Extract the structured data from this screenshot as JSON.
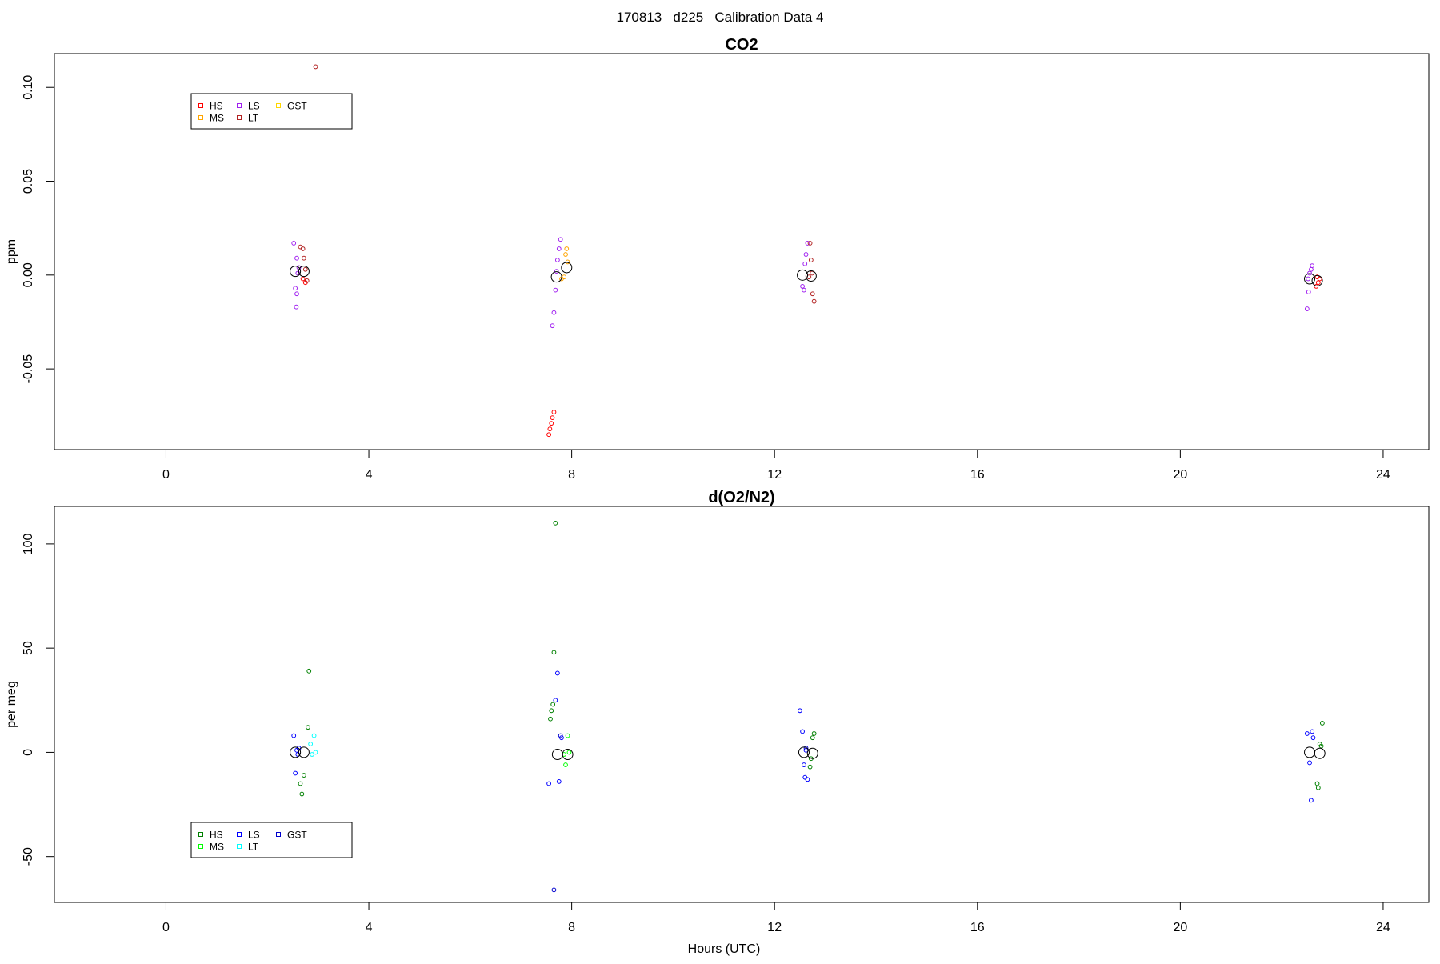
{
  "suptitle": "170813   d225   Calibration Data 4",
  "xlabel": "Hours (UTC)",
  "chart_data": [
    {
      "type": "scatter",
      "title": "CO2",
      "ylabel": "ppm",
      "xlabel": "",
      "xlim": [
        -2.2,
        24.9
      ],
      "ylim": [
        -0.093,
        0.118
      ],
      "xticks": [
        0,
        4,
        8,
        12,
        16,
        20,
        24
      ],
      "yticks": [
        -0.05,
        0.0,
        0.05,
        0.1
      ],
      "ytick_labels": [
        "-0.05",
        "0.00",
        "0.05",
        "0.10"
      ],
      "legend_position": "top-left",
      "legend": [
        {
          "label": "HS",
          "color": "#ff0000"
        },
        {
          "label": "MS",
          "color": "#ffa500"
        },
        {
          "label": "LS",
          "color": "#a020f0"
        },
        {
          "label": "LT",
          "color": "#b22222"
        },
        {
          "label": "GST",
          "color": "#ffd700"
        }
      ],
      "series": [
        {
          "name": "HS",
          "color": "#ff0000",
          "points": [
            [
              2.75,
              -0.004
            ],
            [
              2.7,
              -0.002
            ],
            [
              7.55,
              -0.085
            ],
            [
              7.57,
              -0.082
            ],
            [
              7.6,
              -0.079
            ],
            [
              7.62,
              -0.076
            ],
            [
              7.65,
              -0.073
            ],
            [
              22.7,
              -0.001
            ],
            [
              22.72,
              -0.004
            ],
            [
              22.75,
              -0.002
            ],
            [
              22.68,
              -0.006
            ]
          ]
        },
        {
          "name": "MS",
          "color": "#ffa500",
          "points": [
            [
              7.85,
              -0.001
            ],
            [
              7.88,
              0.011
            ],
            [
              7.9,
              0.014
            ],
            [
              7.92,
              0.007
            ],
            [
              7.8,
              -0.002
            ]
          ]
        },
        {
          "name": "LS",
          "color": "#a020f0",
          "points": [
            [
              2.52,
              0.017
            ],
            [
              2.58,
              0.009
            ],
            [
              2.6,
              0.001
            ],
            [
              2.55,
              -0.007
            ],
            [
              2.58,
              -0.01
            ],
            [
              2.57,
              -0.017
            ],
            [
              2.62,
              0.004
            ],
            [
              7.62,
              -0.027
            ],
            [
              7.65,
              -0.02
            ],
            [
              7.7,
              0.002
            ],
            [
              7.72,
              0.008
            ],
            [
              7.75,
              0.014
            ],
            [
              7.78,
              0.019
            ],
            [
              7.68,
              -0.008
            ],
            [
              12.55,
              -0.006
            ],
            [
              12.58,
              -0.008
            ],
            [
              12.62,
              0.011
            ],
            [
              12.6,
              0.006
            ],
            [
              12.65,
              0.017
            ],
            [
              22.5,
              -0.018
            ],
            [
              22.52,
              -0.002
            ],
            [
              22.55,
              0.001
            ],
            [
              22.58,
              0.003
            ],
            [
              22.6,
              0.005
            ],
            [
              22.53,
              -0.009
            ]
          ]
        },
        {
          "name": "LT",
          "color": "#b22222",
          "points": [
            [
              2.65,
              0.015
            ],
            [
              2.7,
              0.014
            ],
            [
              2.72,
              0.009
            ],
            [
              2.75,
              0.003
            ],
            [
              2.78,
              -0.003
            ],
            [
              2.95,
              0.111
            ],
            [
              12.7,
              0.017
            ],
            [
              12.72,
              0.008
            ],
            [
              12.75,
              -0.01
            ],
            [
              12.78,
              -0.014
            ],
            [
              12.68,
              -0.001
            ],
            [
              12.74,
              0.001
            ]
          ]
        },
        {
          "name": "GST",
          "color": "#ffd700",
          "points": []
        }
      ],
      "means": [
        [
          2.55,
          0.002
        ],
        [
          2.72,
          0.002
        ],
        [
          7.7,
          -0.001
        ],
        [
          7.9,
          0.004
        ],
        [
          12.55,
          0.0
        ],
        [
          12.72,
          -0.0005
        ],
        [
          22.55,
          -0.002
        ],
        [
          22.7,
          -0.003
        ]
      ]
    },
    {
      "type": "scatter",
      "title": "d(O2/N2)",
      "ylabel": "per meg",
      "xlabel": "Hours (UTC)",
      "xlim": [
        -2.2,
        24.9
      ],
      "ylim": [
        -72,
        118
      ],
      "xticks": [
        0,
        4,
        8,
        12,
        16,
        20,
        24
      ],
      "yticks": [
        -50,
        0,
        50,
        100
      ],
      "ytick_labels": [
        "-50",
        "0",
        "50",
        "100"
      ],
      "legend_position": "bottom-left",
      "legend": [
        {
          "label": "HS",
          "color": "#008000"
        },
        {
          "label": "MS",
          "color": "#00ff00"
        },
        {
          "label": "LS",
          "color": "#0000ff"
        },
        {
          "label": "LT",
          "color": "#00ffff"
        },
        {
          "label": "GST",
          "color": "#0000cd"
        }
      ],
      "series": [
        {
          "name": "HS",
          "color": "#008000",
          "points": [
            [
              2.65,
              -15
            ],
            [
              2.68,
              -20
            ],
            [
              2.72,
              -11
            ],
            [
              2.8,
              12
            ],
            [
              2.82,
              39
            ],
            [
              7.58,
              16
            ],
            [
              7.6,
              20
            ],
            [
              7.63,
              23
            ],
            [
              7.65,
              48
            ],
            [
              7.68,
              110
            ],
            [
              12.7,
              -7
            ],
            [
              12.72,
              -3
            ],
            [
              12.75,
              7
            ],
            [
              12.78,
              9
            ],
            [
              22.7,
              -15
            ],
            [
              22.72,
              -17
            ],
            [
              22.75,
              4
            ],
            [
              22.78,
              3
            ],
            [
              22.8,
              14
            ]
          ]
        },
        {
          "name": "MS",
          "color": "#00ff00",
          "points": [
            [
              7.85,
              -1
            ],
            [
              7.88,
              -6
            ],
            [
              7.92,
              8
            ],
            [
              7.95,
              0
            ]
          ]
        },
        {
          "name": "LS",
          "color": "#0000ff",
          "points": [
            [
              2.52,
              8
            ],
            [
              2.55,
              -10
            ],
            [
              2.58,
              1
            ],
            [
              2.6,
              -1
            ],
            [
              2.62,
              2
            ],
            [
              7.55,
              -15
            ],
            [
              7.68,
              25
            ],
            [
              7.72,
              38
            ],
            [
              7.75,
              -14
            ],
            [
              7.8,
              7
            ],
            [
              12.5,
              20
            ],
            [
              12.55,
              10
            ],
            [
              12.58,
              -6
            ],
            [
              12.6,
              -12
            ],
            [
              12.62,
              1
            ],
            [
              12.65,
              -13
            ],
            [
              22.5,
              9
            ],
            [
              22.55,
              -5
            ],
            [
              22.58,
              -23
            ],
            [
              22.6,
              10
            ],
            [
              22.62,
              7
            ]
          ]
        },
        {
          "name": "LT",
          "color": "#00ffff",
          "points": [
            [
              2.85,
              4
            ],
            [
              2.88,
              -1
            ],
            [
              2.92,
              8
            ],
            [
              2.95,
              0
            ]
          ]
        },
        {
          "name": "GST",
          "color": "#0000cd",
          "points": [
            [
              7.65,
              -66
            ],
            [
              7.78,
              8
            ],
            [
              12.62,
              2
            ]
          ]
        }
      ],
      "means": [
        [
          2.55,
          0
        ],
        [
          2.72,
          0
        ],
        [
          7.72,
          -1
        ],
        [
          7.92,
          -1
        ],
        [
          12.58,
          0
        ],
        [
          12.75,
          -0.5
        ],
        [
          22.55,
          0
        ],
        [
          22.75,
          -0.5
        ]
      ]
    }
  ]
}
